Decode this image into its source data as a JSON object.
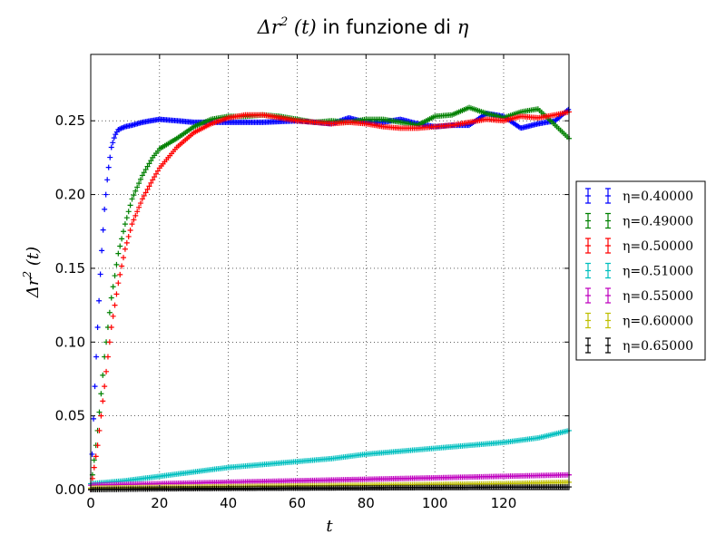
{
  "chart_data": {
    "type": "scatter",
    "title": {
      "prefix": "Δr",
      "sup": "2",
      "mid": " (t)",
      "text": " in funzione di ",
      "symbol": "η"
    },
    "xlabel": "t",
    "ylabel": {
      "main": "Δr",
      "sup": "2",
      "tail": " (t)"
    },
    "xlim": [
      0,
      139
    ],
    "ylim": [
      0,
      0.295
    ],
    "x_ticks": [
      0,
      20,
      40,
      60,
      80,
      100,
      120
    ],
    "x_tick_labels": [
      "0",
      "20",
      "40",
      "60",
      "80",
      "100",
      "120"
    ],
    "y_ticks": [
      0,
      0.05,
      0.1,
      0.15,
      0.2,
      0.25
    ],
    "y_tick_labels": [
      "0.00",
      "0.05",
      "0.10",
      "0.15",
      "0.20",
      "0.25"
    ],
    "grid": true,
    "legend_position": "right",
    "marker": "+",
    "series": [
      {
        "name": "η=0.40000",
        "color": "#0000ff",
        "x": [
          0,
          1,
          2,
          3,
          4,
          5,
          6,
          7,
          8,
          10,
          12,
          15,
          20,
          25,
          30,
          40,
          50,
          60,
          70,
          75,
          80,
          85,
          90,
          95,
          100,
          105,
          110,
          115,
          120,
          125,
          130,
          135,
          139
        ],
        "y": [
          0.0,
          0.06,
          0.11,
          0.155,
          0.19,
          0.215,
          0.232,
          0.24,
          0.244,
          0.246,
          0.247,
          0.249,
          0.251,
          0.25,
          0.249,
          0.249,
          0.249,
          0.25,
          0.248,
          0.252,
          0.249,
          0.249,
          0.251,
          0.248,
          0.246,
          0.247,
          0.247,
          0.255,
          0.253,
          0.245,
          0.248,
          0.25,
          0.258
        ]
      },
      {
        "name": "η=0.49000",
        "color": "#008000",
        "x": [
          0,
          2,
          4,
          6,
          8,
          10,
          12,
          15,
          18,
          20,
          25,
          30,
          35,
          40,
          45,
          50,
          55,
          60,
          65,
          70,
          75,
          80,
          85,
          90,
          95,
          100,
          105,
          110,
          115,
          120,
          125,
          130,
          135,
          139
        ],
        "y": [
          0.0,
          0.04,
          0.09,
          0.13,
          0.16,
          0.18,
          0.197,
          0.213,
          0.225,
          0.231,
          0.238,
          0.246,
          0.251,
          0.253,
          0.253,
          0.254,
          0.253,
          0.251,
          0.249,
          0.25,
          0.249,
          0.251,
          0.251,
          0.249,
          0.247,
          0.253,
          0.254,
          0.259,
          0.255,
          0.252,
          0.256,
          0.258,
          0.247,
          0.238
        ]
      },
      {
        "name": "η=0.50000",
        "color": "#ff0000",
        "x": [
          0,
          2,
          4,
          6,
          8,
          10,
          12,
          15,
          18,
          20,
          25,
          30,
          35,
          40,
          45,
          50,
          55,
          60,
          65,
          70,
          75,
          80,
          85,
          90,
          95,
          100,
          105,
          110,
          115,
          120,
          125,
          130,
          135,
          139
        ],
        "y": [
          0.0,
          0.03,
          0.07,
          0.11,
          0.14,
          0.163,
          0.18,
          0.197,
          0.21,
          0.218,
          0.232,
          0.242,
          0.248,
          0.252,
          0.254,
          0.254,
          0.252,
          0.25,
          0.249,
          0.248,
          0.249,
          0.248,
          0.246,
          0.245,
          0.245,
          0.246,
          0.247,
          0.249,
          0.251,
          0.25,
          0.253,
          0.252,
          0.254,
          0.256
        ]
      },
      {
        "name": "η=0.51000",
        "color": "#00bfbf",
        "x": [
          0,
          10,
          20,
          30,
          40,
          50,
          60,
          70,
          80,
          90,
          100,
          110,
          120,
          130,
          139
        ],
        "y": [
          0.004,
          0.006,
          0.009,
          0.012,
          0.015,
          0.017,
          0.019,
          0.021,
          0.024,
          0.026,
          0.028,
          0.03,
          0.032,
          0.035,
          0.04
        ]
      },
      {
        "name": "η=0.55000",
        "color": "#bf00bf",
        "x": [
          0,
          20,
          40,
          60,
          80,
          100,
          120,
          139
        ],
        "y": [
          0.003,
          0.004,
          0.005,
          0.006,
          0.007,
          0.008,
          0.009,
          0.01
        ]
      },
      {
        "name": "η=0.60000",
        "color": "#bfbf00",
        "x": [
          0,
          20,
          40,
          60,
          80,
          100,
          120,
          139
        ],
        "y": [
          0.001,
          0.0015,
          0.002,
          0.0025,
          0.003,
          0.0035,
          0.004,
          0.005
        ]
      },
      {
        "name": "η=0.65000",
        "color": "#000000",
        "x": [
          0,
          20,
          40,
          60,
          80,
          100,
          120,
          139
        ],
        "y": [
          0.0,
          0.0005,
          0.0008,
          0.001,
          0.0012,
          0.0014,
          0.0016,
          0.0018
        ]
      }
    ]
  }
}
